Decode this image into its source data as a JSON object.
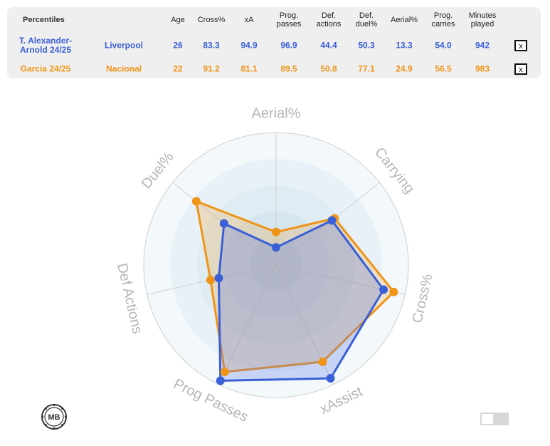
{
  "table": {
    "title": "Percentiles",
    "headers": [
      "Age",
      "Cross%",
      "xA",
      "Prog.\npasses",
      "Def.\nactions",
      "Def.\nduel%",
      "Aerial%",
      "Prog.\ncarries",
      "Minutes\nplayed"
    ],
    "rows": [
      {
        "player": "T. Alexander-\nArnold 24/25",
        "team": "Liverpool",
        "values": [
          "26",
          "83.3",
          "94.9",
          "96.9",
          "44.4",
          "50.3",
          "13.3",
          "54.0",
          "942"
        ],
        "color": "#3a5fd6",
        "remove_label": "x"
      },
      {
        "player": "Garcia 24/25",
        "team": "Nacional",
        "values": [
          "22",
          "91.2",
          "81.1",
          "89.5",
          "50.8",
          "77.1",
          "24.9",
          "56.5",
          "983"
        ],
        "color": "#ef9416",
        "remove_label": "x"
      }
    ]
  },
  "chart_data": {
    "type": "radar",
    "axes": [
      "Aerial%",
      "Carrying",
      "Cross%",
      "xAssist",
      "Prog Passes",
      "Def Actions",
      "Duel%"
    ],
    "range": [
      0,
      100
    ],
    "series": [
      {
        "name": "T. Alexander-Arnold 24/25",
        "values": [
          13.3,
          54.0,
          83.3,
          94.9,
          96.9,
          44.4,
          50.3
        ],
        "color": "#3a5fd6"
      },
      {
        "name": "Garcia 24/25",
        "values": [
          24.9,
          56.5,
          91.2,
          81.1,
          89.5,
          50.8,
          77.1
        ],
        "color": "#ef9416"
      }
    ],
    "ring_colors": [
      "#f3f8fb",
      "#e8f1f7",
      "#dfecf4",
      "#d6e6f0",
      "#cfe1ec"
    ],
    "grid": true
  },
  "logo": {
    "icon": "mb-badge-icon",
    "text": "MB"
  },
  "toggle": {
    "state": "off"
  }
}
